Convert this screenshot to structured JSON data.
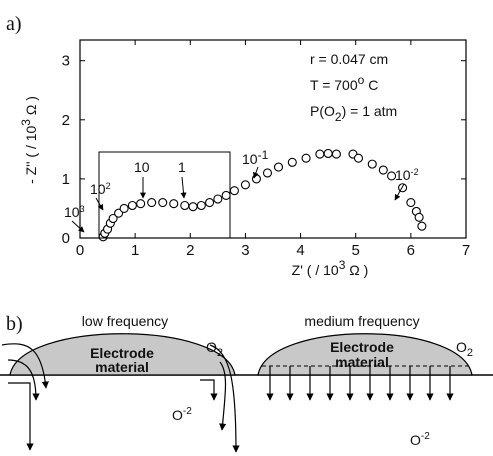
{
  "chart_data": {
    "type": "scatter",
    "x_label": {
      "pre": "Z' ( / 10",
      "sup": "3",
      "post": " Ω )"
    },
    "y_label": {
      "pre": "- Z'' ( / 10",
      "sup": "3",
      "post": " Ω )"
    },
    "xlim": [
      0,
      7
    ],
    "ylim": [
      0,
      3.35
    ],
    "xticks": [
      0,
      1,
      2,
      3,
      4,
      5,
      6,
      7
    ],
    "yticks": [
      0,
      1,
      2,
      3
    ],
    "color": "#000000",
    "x": [
      0.42,
      0.45,
      0.5,
      0.55,
      0.6,
      0.7,
      0.8,
      0.95,
      1.1,
      1.3,
      1.5,
      1.7,
      1.9,
      2.05,
      2.2,
      2.35,
      2.5,
      2.65,
      2.8,
      3.0,
      3.2,
      3.4,
      3.6,
      3.85,
      4.1,
      4.35,
      4.5,
      4.65,
      4.95,
      5.05,
      5.3,
      5.5,
      5.65,
      5.85,
      6.0,
      6.1,
      6.15,
      6.2
    ],
    "values": [
      0.02,
      0.08,
      0.15,
      0.25,
      0.33,
      0.42,
      0.5,
      0.55,
      0.58,
      0.6,
      0.6,
      0.58,
      0.55,
      0.53,
      0.55,
      0.6,
      0.66,
      0.72,
      0.8,
      0.9,
      1.0,
      1.1,
      1.2,
      1.28,
      1.35,
      1.42,
      1.43,
      1.42,
      1.42,
      1.35,
      1.25,
      1.15,
      1.05,
      0.85,
      0.6,
      0.45,
      0.35,
      0.2
    ],
    "annotations": [
      {
        "text": "r = 0.047 cm"
      },
      {
        "pre": "T = 700",
        "sup": "o",
        "post": " C"
      },
      {
        "pre": "P(O",
        "sub": "2",
        "post": ") = 1 atm"
      }
    ],
    "frequency_labels": [
      {
        "base": "10",
        "sup": "-1"
      },
      {
        "base": "10",
        "sup": "-2"
      },
      {
        "base": "10",
        "sup": ""
      },
      {
        "base": "1",
        "sup": ""
      },
      {
        "base": "10",
        "sup": "2"
      },
      {
        "base": "10",
        "sup": "3"
      }
    ]
  },
  "panel_labels": [
    "a)",
    "b)"
  ],
  "diagram": {
    "left": {
      "title": "low frequency",
      "material": [
        "Electrode",
        "material"
      ],
      "gas": {
        "base": "O",
        "sub": "2"
      },
      "ion": {
        "base": "O",
        "sup": "-2"
      }
    },
    "right": {
      "title": "medium frequency",
      "material": [
        "Electrode",
        "material"
      ],
      "gas": {
        "base": "O",
        "sub": "2"
      },
      "ion": {
        "base": "O",
        "sup": "-2"
      }
    }
  }
}
